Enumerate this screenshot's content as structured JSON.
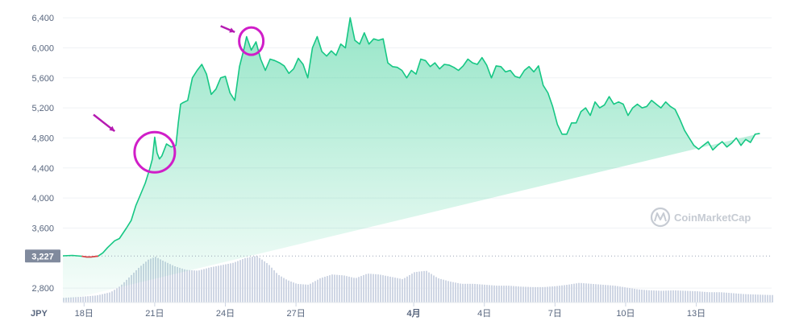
{
  "chart_data": {
    "type": "area",
    "currency": "JPY",
    "watermark": "CoinMarketCap",
    "start_value_label": "3,227",
    "y_ticks": [
      2800,
      3600,
      4000,
      4400,
      4800,
      5200,
      5600,
      6000,
      6400
    ],
    "y_tick_labels": [
      "2,800",
      "3,600",
      "4,000",
      "4,400",
      "4,800",
      "5,200",
      "5,600",
      "6,000",
      "6,400"
    ],
    "ylim": [
      2630,
      6530
    ],
    "start_value": 3227,
    "x_ticks": [
      {
        "label": "18日",
        "day": 18,
        "bold": false
      },
      {
        "label": "21日",
        "day": 21,
        "bold": false
      },
      {
        "label": "24日",
        "day": 24,
        "bold": false
      },
      {
        "label": "27日",
        "day": 27,
        "bold": false
      },
      {
        "label": "4月",
        "day": 32,
        "bold": true
      },
      {
        "label": "4日",
        "day": 35,
        "bold": false
      },
      {
        "label": "7日",
        "day": 38,
        "bold": false
      },
      {
        "label": "10日",
        "day": 41,
        "bold": false
      },
      {
        "label": "13日",
        "day": 44,
        "bold": false
      }
    ],
    "xlim": [
      17.1,
      47.2
    ],
    "price": {
      "day": [
        17.1,
        17.5,
        17.9,
        18.1,
        18.3,
        18.6,
        18.8,
        19.0,
        19.3,
        19.5,
        19.8,
        20.0,
        20.2,
        20.4,
        20.6,
        20.8,
        20.9,
        21.0,
        21.1,
        21.2,
        21.3,
        21.5,
        21.7,
        21.9,
        22.0,
        22.1,
        22.2,
        22.4,
        22.6,
        22.8,
        23.0,
        23.2,
        23.4,
        23.6,
        23.8,
        24.0,
        24.2,
        24.4,
        24.6,
        24.8,
        24.9,
        25.1,
        25.3,
        25.5,
        25.7,
        25.9,
        26.1,
        26.3,
        26.5,
        26.7,
        26.9,
        27.1,
        27.3,
        27.5,
        27.7,
        27.9,
        28.1,
        28.3,
        28.5,
        28.7,
        28.9,
        29.1,
        29.3,
        29.5,
        29.7,
        29.9,
        30.1,
        30.3,
        30.5,
        30.7,
        30.9,
        31.1,
        31.3,
        31.5,
        31.7,
        31.9,
        32.1,
        32.3,
        32.5,
        32.7,
        32.9,
        33.1,
        33.3,
        33.5,
        33.7,
        33.9,
        34.1,
        34.3,
        34.5,
        34.7,
        34.9,
        35.1,
        35.3,
        35.5,
        35.7,
        35.9,
        36.1,
        36.3,
        36.5,
        36.7,
        36.9,
        37.1,
        37.3,
        37.5,
        37.7,
        37.9,
        38.1,
        38.3,
        38.5,
        38.7,
        38.9,
        39.1,
        39.3,
        39.5,
        39.7,
        39.9,
        40.1,
        40.3,
        40.5,
        40.7,
        40.9,
        41.1,
        41.3,
        41.5,
        41.7,
        41.9,
        42.1,
        42.3,
        42.5,
        42.7,
        42.9,
        43.1,
        43.3,
        43.5,
        43.7,
        43.9,
        44.1,
        44.3,
        44.5,
        44.7,
        44.9,
        45.1,
        45.3,
        45.5,
        45.7,
        45.9,
        46.1,
        46.3,
        46.5,
        46.7,
        46.9,
        47.1
      ],
      "value": [
        3230,
        3235,
        3225,
        3215,
        3215,
        3227,
        3270,
        3340,
        3430,
        3460,
        3600,
        3700,
        3900,
        4050,
        4200,
        4400,
        4520,
        4810,
        4600,
        4520,
        4560,
        4720,
        4680,
        4700,
        5000,
        5250,
        5270,
        5300,
        5600,
        5700,
        5780,
        5650,
        5380,
        5450,
        5600,
        5620,
        5400,
        5300,
        5750,
        6000,
        6150,
        5970,
        6080,
        5850,
        5700,
        5850,
        5830,
        5800,
        5760,
        5660,
        5720,
        5860,
        5780,
        5600,
        6000,
        6150,
        5950,
        5890,
        5960,
        5900,
        6050,
        6000,
        6400,
        6100,
        6050,
        6200,
        6050,
        6120,
        6100,
        6120,
        5800,
        5750,
        5740,
        5700,
        5600,
        5700,
        5650,
        5850,
        5830,
        5750,
        5800,
        5720,
        5780,
        5770,
        5740,
        5700,
        5760,
        5850,
        5800,
        5780,
        5870,
        5770,
        5600,
        5760,
        5750,
        5680,
        5700,
        5620,
        5600,
        5700,
        5750,
        5680,
        5760,
        5500,
        5400,
        5220,
        4980,
        4850,
        4850,
        5000,
        5000,
        5150,
        5200,
        5100,
        5280,
        5200,
        5240,
        5350,
        5250,
        5280,
        5250,
        5100,
        5200,
        5250,
        5200,
        5220,
        5300,
        5250,
        5200,
        5280,
        5220,
        5180,
        5050,
        4900,
        4800,
        4700,
        4650,
        4700,
        4750,
        4640,
        4700,
        4750,
        4680,
        4730,
        4800,
        4700,
        4780,
        4740,
        4850,
        4860
      ]
    },
    "volume": {
      "day": [
        17.1,
        17.8,
        18.5,
        19.1,
        19.5,
        19.9,
        20.3,
        20.7,
        21.0,
        21.3,
        21.8,
        22.3,
        22.8,
        23.3,
        23.8,
        24.3,
        24.8,
        25.3,
        25.8,
        26.2,
        26.6,
        27.0,
        27.5,
        28.0,
        28.5,
        29.0,
        29.5,
        30.0,
        30.5,
        31.0,
        31.5,
        32.0,
        32.5,
        33.0,
        33.5,
        34.0,
        34.5,
        35.0,
        35.5,
        36.0,
        36.5,
        37.0,
        37.5,
        38.0,
        38.5,
        39.0,
        39.5,
        40.0,
        40.5,
        41.0,
        41.5,
        42.0,
        42.5,
        43.0,
        43.5,
        44.0,
        44.5,
        45.0,
        45.5,
        46.0,
        46.5,
        47.1
      ],
      "value": [
        0.1,
        0.12,
        0.15,
        0.22,
        0.35,
        0.55,
        0.75,
        0.92,
        0.98,
        0.9,
        0.78,
        0.7,
        0.68,
        0.75,
        0.8,
        0.85,
        0.95,
        1.0,
        0.82,
        0.6,
        0.48,
        0.4,
        0.38,
        0.52,
        0.6,
        0.58,
        0.52,
        0.62,
        0.6,
        0.55,
        0.5,
        0.65,
        0.68,
        0.52,
        0.45,
        0.4,
        0.4,
        0.38,
        0.36,
        0.36,
        0.34,
        0.33,
        0.33,
        0.35,
        0.38,
        0.42,
        0.4,
        0.38,
        0.36,
        0.32,
        0.28,
        0.26,
        0.25,
        0.26,
        0.25,
        0.24,
        0.22,
        0.22,
        0.2,
        0.18,
        0.17,
        0.16
      ]
    },
    "annotations": [
      {
        "kind": "circle",
        "day": 21.0,
        "value": 4610,
        "color": "#d01ec8"
      },
      {
        "kind": "circle",
        "day": 25.1,
        "value": 6090,
        "color": "#d01ec8"
      },
      {
        "kind": "arrow",
        "from_day": 18.4,
        "from_value": 5110,
        "to_day": 19.3,
        "to_value": 4890,
        "color": "#b51ab1"
      },
      {
        "kind": "arrow",
        "from_day": 23.8,
        "from_value": 6290,
        "to_day": 24.4,
        "to_value": 6210,
        "color": "#b51ab1"
      }
    ],
    "colors": {
      "line": "#16c784",
      "line_start": "#ea3943",
      "fill_top": "#16c784",
      "grid": "#eff2f5",
      "volume": "#cfd6e4",
      "badge": "#808a9d",
      "baseline": "#9aa3b5"
    }
  }
}
